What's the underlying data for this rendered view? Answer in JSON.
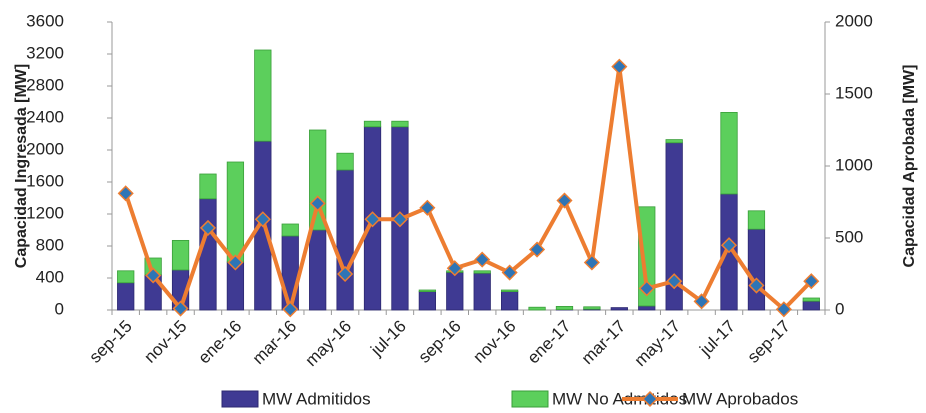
{
  "chart_data": {
    "type": "bar_line",
    "categories": [
      "sep-15",
      null,
      "nov-15",
      null,
      "ene-16",
      null,
      "mar-16",
      null,
      "may-16",
      null,
      "jul-16",
      null,
      "sep-16",
      null,
      "nov-16",
      null,
      "ene-17",
      null,
      "mar-17",
      null,
      "may-17",
      null,
      "jul-17",
      null,
      "sep-17",
      null
    ],
    "y_label": "Capacidad Ingresada [MW]",
    "y2_label": "Capacidad Aprobada [MW]",
    "ylim": [
      0,
      3600
    ],
    "yticks": [
      0,
      400,
      800,
      1200,
      1600,
      2000,
      2400,
      2800,
      3200,
      3600
    ],
    "y2lim": [
      0,
      2000
    ],
    "y2ticks": [
      0,
      500,
      1000,
      1500,
      2000
    ],
    "grid": false,
    "series": [
      {
        "name": "MW Admitidos",
        "type": "bar",
        "stacked": true,
        "color": "#3f3a93",
        "values": [
          340,
          440,
          500,
          1390,
          600,
          2110,
          925,
          1000,
          1750,
          2290,
          2290,
          230,
          470,
          460,
          230,
          0,
          5,
          10,
          30,
          50,
          2090,
          0,
          1450,
          1010,
          0,
          110
        ]
      },
      {
        "name": "MW No Admitidos",
        "type": "bar",
        "stacked": true,
        "color": "#5ccf5c",
        "values": [
          150,
          210,
          370,
          310,
          1250,
          1140,
          150,
          1250,
          210,
          70,
          70,
          20,
          20,
          30,
          20,
          35,
          40,
          30,
          0,
          1240,
          40,
          0,
          1020,
          230,
          0,
          40
        ]
      },
      {
        "name": "MW Aprobados",
        "type": "line",
        "axis": "y2",
        "color": "#ed7d31",
        "marker_color": "#2e75b6",
        "values": [
          810,
          240,
          10,
          570,
          330,
          630,
          5,
          740,
          250,
          630,
          630,
          710,
          290,
          350,
          260,
          420,
          760,
          330,
          1690,
          150,
          200,
          60,
          450,
          170,
          5,
          200
        ]
      }
    ]
  }
}
